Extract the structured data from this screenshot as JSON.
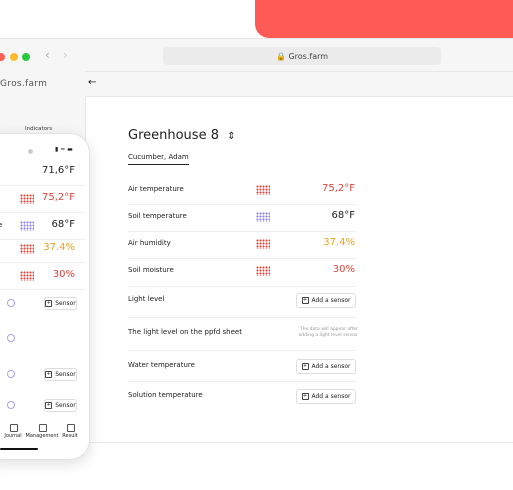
{
  "browser": {
    "url": "Gros.farm"
  },
  "sidebar": {
    "logo": "Gros.farm",
    "menu_item": "Indicators"
  },
  "main": {
    "title": "Greenhouse 8",
    "subtitle": "Cucumber, Adam",
    "rows": [
      {
        "label": "Air temperature",
        "value": "75,2°F",
        "color": "#d9443a"
      },
      {
        "label": "Soil temperature",
        "value": "68°F",
        "color": "#222222"
      },
      {
        "label": "Air humidity",
        "value": "37.4%",
        "color": "#e8a020"
      },
      {
        "label": "Soil moisture",
        "value": "30%",
        "color": "#d9443a"
      },
      {
        "label": "Light level",
        "button": "Add a sensor"
      },
      {
        "label": "The light level on the ppfd sheet",
        "note": "The data will appear after adding a light level sensor"
      },
      {
        "label": "Water temperature",
        "button": "Add a sensor"
      },
      {
        "label": "Solution temperature",
        "button": "Add a sensor"
      }
    ]
  },
  "phone": {
    "partial_label": "e",
    "values": [
      {
        "text": "71,6°F",
        "color": "#222222"
      },
      {
        "text": "75,2°F",
        "color": "#d9443a"
      },
      {
        "text": "68°F",
        "color": "#222222"
      },
      {
        "text": "37.4%",
        "color": "#e8a020"
      },
      {
        "text": "30%",
        "color": "#d9443a"
      }
    ],
    "buttons": [
      "Sensor",
      "Sensor",
      "Sensor"
    ],
    "nav": [
      "Journal",
      "Management",
      "Result"
    ]
  }
}
